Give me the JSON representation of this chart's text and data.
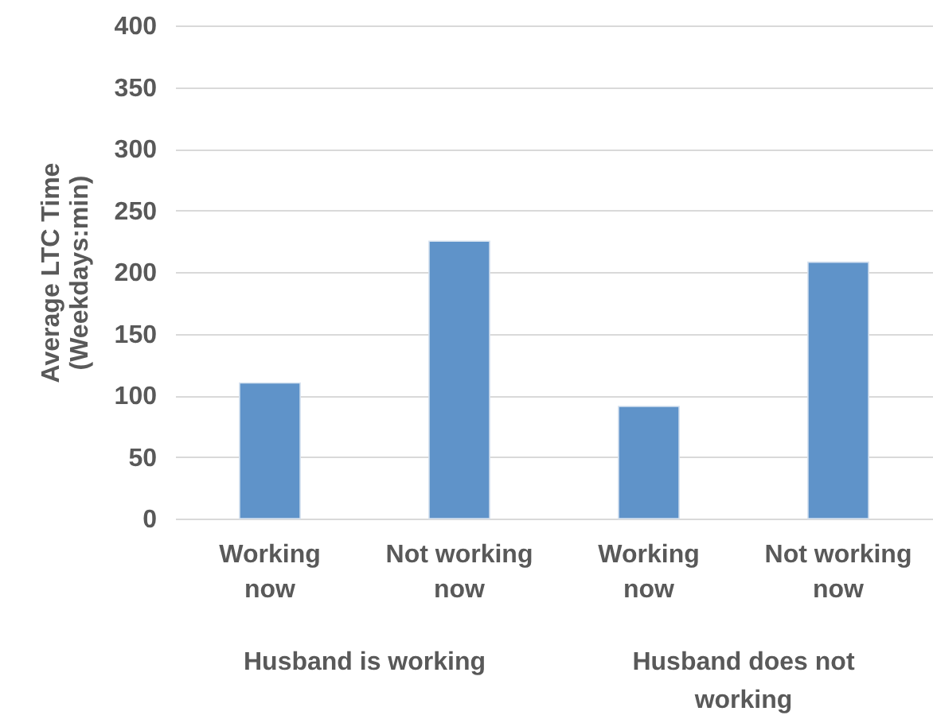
{
  "chart_data": {
    "type": "bar",
    "ylabel": "Average LTC Time (Weekdays:min)",
    "categories": [
      "Working now",
      "Not working now",
      "Working now",
      "Not working now"
    ],
    "values": [
      110,
      225,
      91,
      208
    ],
    "color": "#5f93c9",
    "ylim": [
      0,
      400
    ],
    "yticks": [
      0,
      50,
      100,
      150,
      200,
      250,
      300,
      350,
      400
    ],
    "grid": "y",
    "annotations": [
      "Husband is working",
      "Husband does not working"
    ]
  }
}
